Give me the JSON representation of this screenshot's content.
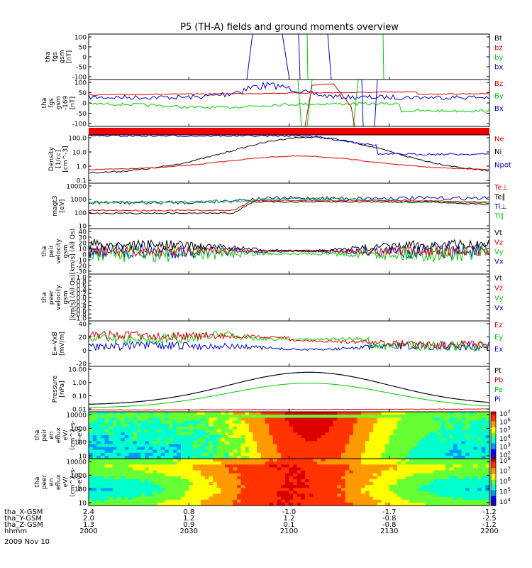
{
  "title": "P5 (TH-A) fields and ground moments overview",
  "date_label": "2009 Nov 10",
  "time_axis": {
    "rows": [
      {
        "name": "tha_X-GSM",
        "values": [
          "2.4",
          "0.8",
          "-1.0",
          "-1.7",
          "-1.2"
        ]
      },
      {
        "name": "tha_Y-GSM",
        "values": [
          "2.0",
          "1.2",
          "1.2",
          "-0.8",
          "-2.5"
        ]
      },
      {
        "name": "tha_Z-GSM",
        "values": [
          "1.3",
          "0.9",
          "0.1",
          "-0.8",
          "-1.2"
        ]
      },
      {
        "name": "hhmm",
        "values": [
          "2000",
          "2030",
          "2100",
          "2130",
          "2200"
        ]
      }
    ],
    "tick_hhmm": [
      2000,
      2030,
      2100,
      2130,
      2200
    ]
  },
  "colors": {
    "black": "#000000",
    "red": "#dd0000",
    "green": "#00cc00",
    "blue": "#0000dd"
  },
  "chart_data": [
    {
      "type": "line",
      "ylabel": [
        "tha",
        "fgs",
        "gsm",
        "[nT]"
      ],
      "yticks": [
        "100",
        "50",
        "0",
        "-50",
        "-100"
      ],
      "legend": [
        {
          "label": "Bt",
          "color": "#000000"
        },
        {
          "label": "bz",
          "color": "#dd0000"
        },
        {
          "label": "by",
          "color": "#00cc00"
        },
        {
          "label": "bx",
          "color": "#0000dd"
        }
      ]
    },
    {
      "type": "line",
      "ylabel": [
        "tha",
        "fgs",
        "gsm",
        "-169",
        "[nT]"
      ],
      "yticks": [
        "100",
        "50",
        "0",
        "-50",
        "-100"
      ],
      "legend": [
        {
          "label": "Bz",
          "color": "#dd0000"
        },
        {
          "label": "By",
          "color": "#00cc00"
        },
        {
          "label": "Bx",
          "color": "#0000dd"
        }
      ]
    },
    {
      "type": "line",
      "ylabel": [
        "Density",
        "[1/cc]",
        "[cm^-3]"
      ],
      "yticks": [
        "100.0",
        "10.0",
        "1.0",
        "0.1"
      ],
      "yscale": "log",
      "legend": [
        {
          "label": "Ne",
          "color": "#dd0000"
        },
        {
          "label": "Ni",
          "color": "#000000"
        },
        {
          "label": "Npot",
          "color": "#0000dd"
        }
      ]
    },
    {
      "type": "line",
      "ylabel": [
        "magt3",
        "[eV]"
      ],
      "yticks": [
        "10000",
        "1000",
        "100",
        "10"
      ],
      "yscale": "log",
      "legend": [
        {
          "label": "Te⊥",
          "color": "#dd0000"
        },
        {
          "label": "Te∥",
          "color": "#000000"
        },
        {
          "label": "Ti⊥",
          "color": "#0000dd"
        },
        {
          "label": "Ti∥",
          "color": "#00cc00"
        }
      ]
    },
    {
      "type": "line",
      "ylabel": [
        "tha",
        "peir",
        "velocity",
        "gsm",
        "[km/s] (All Qs)"
      ],
      "yticks": [
        "40",
        "30",
        "20",
        "10",
        "0",
        "-10",
        "-20",
        "-30"
      ],
      "legend": [
        {
          "label": "Vt",
          "color": "#000000"
        },
        {
          "label": "Vz",
          "color": "#dd0000"
        },
        {
          "label": "Vy",
          "color": "#00cc00"
        },
        {
          "label": "Vx",
          "color": "#0000dd"
        }
      ]
    },
    {
      "type": "line",
      "ylabel": [
        "tha",
        "peer",
        "velocity",
        "gsm",
        "[km/s] (All Qs)"
      ],
      "yticks": [
        "1.0",
        "0.8",
        "0.6",
        "0.4",
        "0.2",
        "0.0",
        "-0.2",
        "-0.4",
        "-0.6",
        "-0.8",
        "-1.0"
      ],
      "legend": [
        {
          "label": "Vt",
          "color": "#000000"
        },
        {
          "label": "Vz",
          "color": "#dd0000"
        },
        {
          "label": "Vy",
          "color": "#00cc00"
        },
        {
          "label": "Vx",
          "color": "#0000dd"
        }
      ]
    },
    {
      "type": "line",
      "ylabel": [
        "E=-VxB",
        "[mV/m]"
      ],
      "yticks": [
        "40",
        "20",
        "0",
        "-20"
      ],
      "legend": [
        {
          "label": "Ez",
          "color": "#dd0000"
        },
        {
          "label": "Ey",
          "color": "#00cc00"
        },
        {
          "label": "Ex",
          "color": "#0000dd"
        }
      ]
    },
    {
      "type": "line",
      "ylabel": [
        "Pressure",
        "[nPa]"
      ],
      "yticks": [
        "10.00",
        "1.00",
        "0.10",
        "0.01"
      ],
      "yscale": "log",
      "legend": [
        {
          "label": "Pt",
          "color": "#000000"
        },
        {
          "label": "Pb",
          "color": "#dd0000"
        },
        {
          "label": "Pe",
          "color": "#00cc00"
        },
        {
          "label": "Pi",
          "color": "#0000dd"
        }
      ]
    },
    {
      "type": "heatmap",
      "ylabel": [
        "tha",
        "peir",
        "en",
        "eflux",
        "eV/",
        "(cm^2-s-",
        "sr-eV)"
      ],
      "yticks": [
        "10000",
        "1000",
        "100",
        "10"
      ],
      "colorbar": [
        "10^7",
        "10^6",
        "10^5",
        "10^4",
        "10^3",
        "10^2"
      ]
    },
    {
      "type": "heatmap",
      "ylabel": [
        "tha",
        "peer",
        "en",
        "eflux",
        "eV/",
        "(cm^2-s-",
        "sr-eV)"
      ],
      "yticks": [
        "10000",
        "1000",
        "100",
        "10"
      ],
      "colorbar": [
        "10^8",
        "10^7",
        "10^6",
        "10^5",
        "10^4"
      ]
    }
  ]
}
